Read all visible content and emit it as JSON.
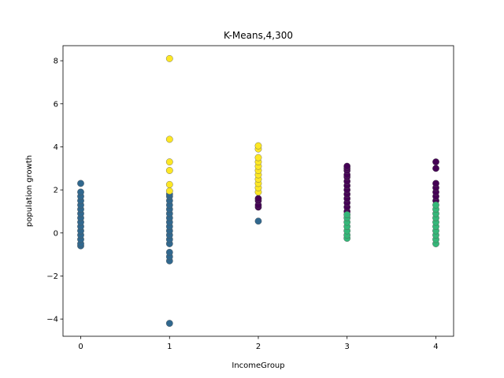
{
  "chart_data": {
    "type": "scatter",
    "title": "K-Means,4,300",
    "xlabel": "IncomeGroup",
    "ylabel": "population growth",
    "xlim": [
      -0.2,
      4.2
    ],
    "ylim": [
      -4.8,
      8.7
    ],
    "xticks": [
      0,
      1,
      2,
      3,
      4
    ],
    "yticks": [
      -4,
      -2,
      0,
      2,
      4,
      6,
      8
    ],
    "grid": false,
    "legend": "none",
    "series": [
      {
        "color": "#440154",
        "points": [
          [
            2,
            1.2
          ],
          [
            2,
            1.3
          ],
          [
            2,
            1.5
          ],
          [
            2,
            1.6
          ],
          [
            3,
            1.0
          ],
          [
            3,
            1.2
          ],
          [
            3,
            1.4
          ],
          [
            3,
            1.6
          ],
          [
            3,
            1.8
          ],
          [
            3,
            2.0
          ],
          [
            3,
            2.2
          ],
          [
            3,
            2.4
          ],
          [
            3,
            2.6
          ],
          [
            3,
            2.7
          ],
          [
            3,
            2.9
          ],
          [
            3,
            3.0
          ],
          [
            3,
            3.1
          ],
          [
            4,
            1.5
          ],
          [
            4,
            1.7
          ],
          [
            4,
            1.9
          ],
          [
            4,
            2.1
          ],
          [
            4,
            2.3
          ],
          [
            4,
            3.0
          ],
          [
            4,
            3.3
          ]
        ]
      },
      {
        "color": "#31688e",
        "points": [
          [
            0,
            -0.6
          ],
          [
            0,
            -0.5
          ],
          [
            0,
            -0.3
          ],
          [
            0,
            -0.1
          ],
          [
            0,
            0.1
          ],
          [
            0,
            0.3
          ],
          [
            0,
            0.5
          ],
          [
            0,
            0.7
          ],
          [
            0,
            0.9
          ],
          [
            0,
            1.1
          ],
          [
            0,
            1.3
          ],
          [
            0,
            1.5
          ],
          [
            0,
            1.7
          ],
          [
            0,
            1.9
          ],
          [
            0,
            2.3
          ],
          [
            1,
            -4.2
          ],
          [
            1,
            -1.3
          ],
          [
            1,
            -1.1
          ],
          [
            1,
            -0.9
          ],
          [
            1,
            -0.5
          ],
          [
            1,
            -0.3
          ],
          [
            1,
            -0.1
          ],
          [
            1,
            0.1
          ],
          [
            1,
            0.3
          ],
          [
            1,
            0.5
          ],
          [
            1,
            0.7
          ],
          [
            1,
            0.9
          ],
          [
            1,
            1.1
          ],
          [
            1,
            1.3
          ],
          [
            1,
            1.5
          ],
          [
            1,
            1.7
          ],
          [
            1,
            1.8
          ],
          [
            2,
            0.55
          ]
        ]
      },
      {
        "color": "#35b779",
        "points": [
          [
            3,
            -0.25
          ],
          [
            3,
            -0.1
          ],
          [
            3,
            0.1
          ],
          [
            3,
            0.3
          ],
          [
            3,
            0.5
          ],
          [
            3,
            0.7
          ],
          [
            3,
            0.85
          ],
          [
            4,
            -0.5
          ],
          [
            4,
            -0.3
          ],
          [
            4,
            -0.1
          ],
          [
            4,
            0.1
          ],
          [
            4,
            0.3
          ],
          [
            4,
            0.5
          ],
          [
            4,
            0.7
          ],
          [
            4,
            0.9
          ],
          [
            4,
            1.1
          ],
          [
            4,
            1.3
          ]
        ]
      },
      {
        "color": "#fde725",
        "points": [
          [
            1,
            1.95
          ],
          [
            1,
            2.25
          ],
          [
            1,
            2.9
          ],
          [
            1,
            3.3
          ],
          [
            1,
            4.35
          ],
          [
            1,
            8.1
          ],
          [
            2,
            1.9
          ],
          [
            2,
            2.1
          ],
          [
            2,
            2.3
          ],
          [
            2,
            2.5
          ],
          [
            2,
            2.7
          ],
          [
            2,
            2.9
          ],
          [
            2,
            3.1
          ],
          [
            2,
            3.3
          ],
          [
            2,
            3.5
          ],
          [
            2,
            3.9
          ],
          [
            2,
            4.05
          ]
        ]
      }
    ]
  }
}
